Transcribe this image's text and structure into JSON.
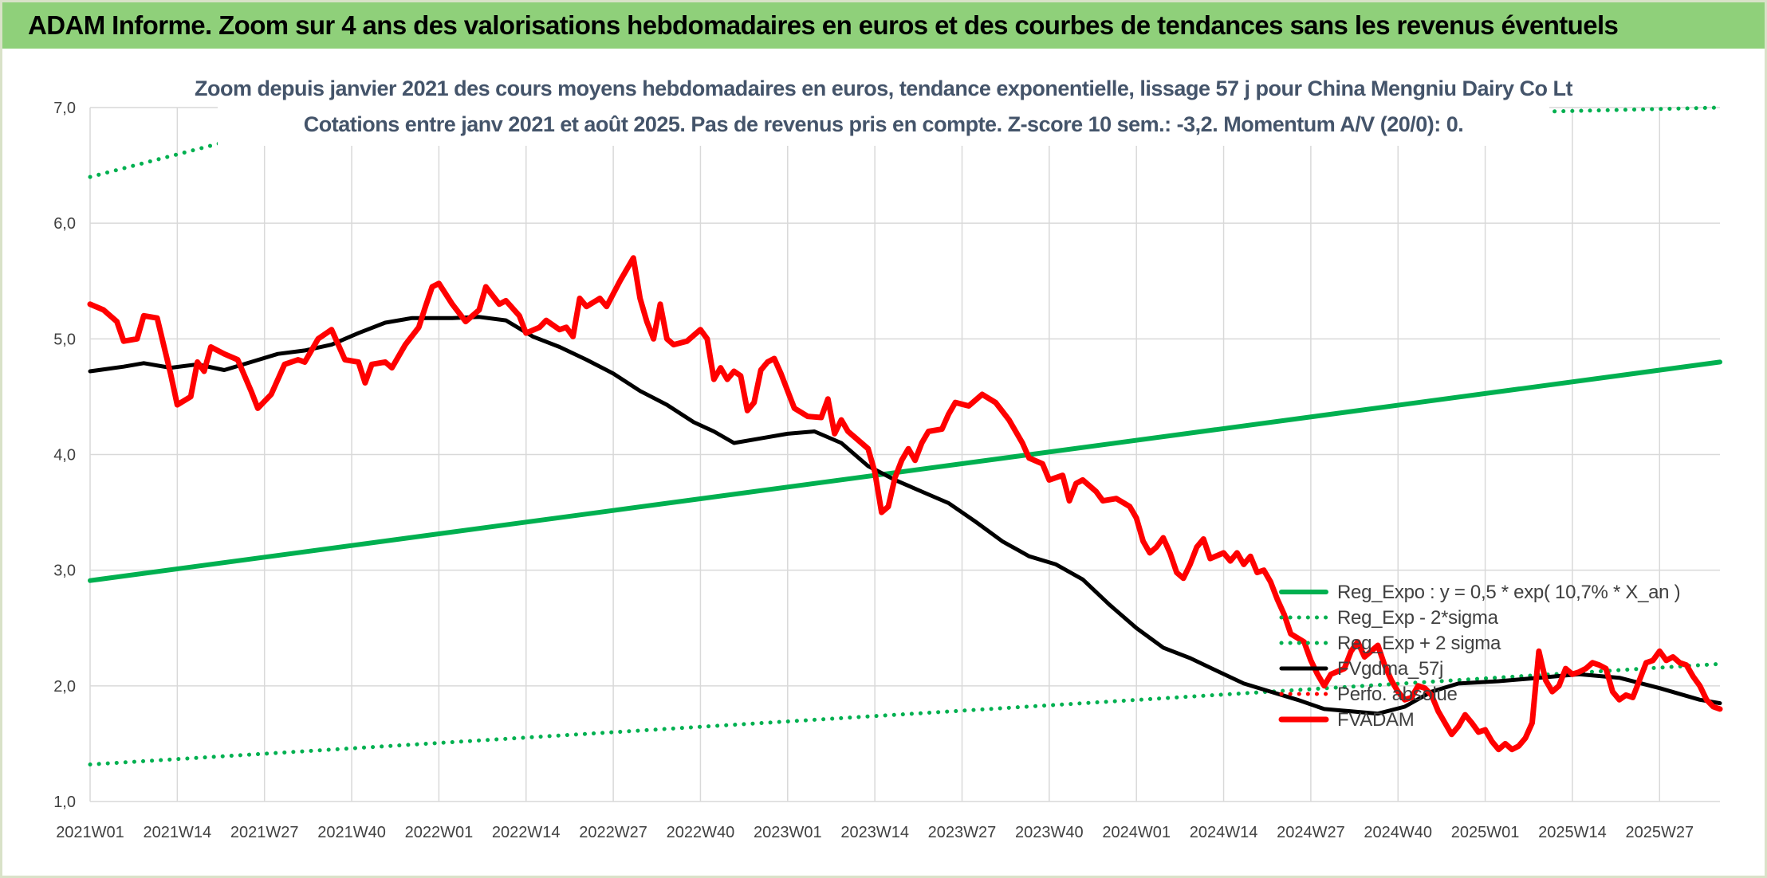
{
  "banner": {
    "title": "ADAM Informe. Zoom sur 4 ans des valorisations hebdomadaires en euros et des courbes de tendances sans les revenus éventuels"
  },
  "colors": {
    "banner_bg": "#8fd07a",
    "reg_green": "#00b050",
    "fvgdma_black": "#000000",
    "fvadam_red": "#ff0000",
    "grid": "#d9d9d9",
    "subtitle_text": "#44546a"
  },
  "chart_data": {
    "type": "line",
    "title": "Zoom depuis janvier 2021 des cours moyens hebdomadaires en euros, tendance exponentielle, lissage 57 j pour China Mengniu Dairy Co Lt",
    "subtitle": "Cotations entre janv 2021 et août 2025. Pas de revenus pris en compte. Z-score 10 sem.: -3,2. Momentum A/V (20/0): 0.",
    "xlabel": "",
    "ylabel": "",
    "ylim": [
      1.0,
      7.0
    ],
    "grid": true,
    "legend_position": "bottom-right",
    "y_ticks": [
      "1,0",
      "2,0",
      "3,0",
      "4,0",
      "5,0",
      "6,0",
      "7,0"
    ],
    "y_tick_values": [
      1,
      2,
      3,
      4,
      5,
      6,
      7
    ],
    "x_ticks": [
      "2021W01",
      "2021W14",
      "2021W27",
      "2021W40",
      "2022W01",
      "2022W14",
      "2022W27",
      "2022W40",
      "2023W01",
      "2023W14",
      "2023W27",
      "2023W40",
      "2024W01",
      "2024W14",
      "2024W27",
      "2024W40",
      "2025W01",
      "2025W14",
      "2025W27"
    ],
    "x_tick_index": [
      0,
      13,
      26,
      39,
      52,
      65,
      78,
      91,
      104,
      117,
      130,
      143,
      156,
      169,
      182,
      195,
      208,
      221,
      234
    ],
    "n_weeks": 244,
    "series": [
      {
        "name": "Reg_Expo : y = 0,5 * exp( 10,7% *  X_an )",
        "style": "solid-thick",
        "color": "#00b050",
        "points": [
          [
            0,
            2.91
          ],
          [
            243,
            4.8
          ]
        ]
      },
      {
        "name": "Reg_Exp - 2*sigma",
        "style": "dotted",
        "color": "#00b050",
        "points": [
          [
            0,
            1.32
          ],
          [
            243,
            2.19
          ]
        ]
      },
      {
        "name": "Reg_Exp + 2 sigma",
        "style": "dotted",
        "color": "#00b050",
        "points": [
          [
            0,
            6.4
          ],
          [
            20,
            6.7
          ],
          [
            243,
            7.0
          ]
        ]
      },
      {
        "name": "FVgdma_57j",
        "style": "solid",
        "color": "#000000",
        "points": [
          [
            0,
            4.72
          ],
          [
            5,
            4.76
          ],
          [
            8,
            4.79
          ],
          [
            12,
            4.75
          ],
          [
            16,
            4.78
          ],
          [
            20,
            4.73
          ],
          [
            24,
            4.8
          ],
          [
            28,
            4.87
          ],
          [
            32,
            4.9
          ],
          [
            36,
            4.95
          ],
          [
            40,
            5.05
          ],
          [
            44,
            5.14
          ],
          [
            48,
            5.18
          ],
          [
            54,
            5.18
          ],
          [
            58,
            5.19
          ],
          [
            62,
            5.16
          ],
          [
            66,
            5.02
          ],
          [
            70,
            4.93
          ],
          [
            74,
            4.82
          ],
          [
            78,
            4.7
          ],
          [
            82,
            4.55
          ],
          [
            86,
            4.43
          ],
          [
            90,
            4.28
          ],
          [
            93,
            4.2
          ],
          [
            96,
            4.1
          ],
          [
            100,
            4.14
          ],
          [
            104,
            4.18
          ],
          [
            108,
            4.2
          ],
          [
            112,
            4.1
          ],
          [
            116,
            3.9
          ],
          [
            120,
            3.78
          ],
          [
            124,
            3.68
          ],
          [
            128,
            3.58
          ],
          [
            132,
            3.42
          ],
          [
            136,
            3.25
          ],
          [
            140,
            3.12
          ],
          [
            144,
            3.05
          ],
          [
            148,
            2.92
          ],
          [
            152,
            2.7
          ],
          [
            156,
            2.5
          ],
          [
            160,
            2.33
          ],
          [
            164,
            2.24
          ],
          [
            168,
            2.13
          ],
          [
            172,
            2.02
          ],
          [
            176,
            1.95
          ],
          [
            180,
            1.88
          ],
          [
            184,
            1.8
          ],
          [
            188,
            1.78
          ],
          [
            192,
            1.76
          ],
          [
            196,
            1.82
          ],
          [
            200,
            1.95
          ],
          [
            204,
            2.02
          ],
          [
            210,
            2.04
          ],
          [
            216,
            2.07
          ],
          [
            222,
            2.1
          ],
          [
            228,
            2.07
          ],
          [
            234,
            1.98
          ],
          [
            240,
            1.88
          ],
          [
            243,
            1.85
          ]
        ]
      },
      {
        "name": "Perfo. absolue",
        "style": "dotted",
        "color": "#ff0000",
        "points": []
      },
      {
        "name": "FVADAM",
        "style": "solid-thick",
        "color": "#ff0000",
        "points": [
          [
            0,
            5.3
          ],
          [
            2,
            5.25
          ],
          [
            4,
            5.15
          ],
          [
            5,
            4.98
          ],
          [
            7,
            5.0
          ],
          [
            8,
            5.2
          ],
          [
            10,
            5.18
          ],
          [
            12,
            4.7
          ],
          [
            13,
            4.43
          ],
          [
            15,
            4.5
          ],
          [
            16,
            4.8
          ],
          [
            17,
            4.72
          ],
          [
            18,
            4.93
          ],
          [
            20,
            4.87
          ],
          [
            22,
            4.82
          ],
          [
            24,
            4.55
          ],
          [
            25,
            4.4
          ],
          [
            27,
            4.52
          ],
          [
            29,
            4.78
          ],
          [
            31,
            4.82
          ],
          [
            32,
            4.8
          ],
          [
            34,
            5.0
          ],
          [
            36,
            5.08
          ],
          [
            37,
            4.95
          ],
          [
            38,
            4.82
          ],
          [
            40,
            4.8
          ],
          [
            41,
            4.62
          ],
          [
            42,
            4.78
          ],
          [
            44,
            4.8
          ],
          [
            45,
            4.75
          ],
          [
            47,
            4.95
          ],
          [
            49,
            5.1
          ],
          [
            50,
            5.28
          ],
          [
            51,
            5.45
          ],
          [
            52,
            5.48
          ],
          [
            54,
            5.3
          ],
          [
            56,
            5.15
          ],
          [
            58,
            5.25
          ],
          [
            59,
            5.45
          ],
          [
            61,
            5.3
          ],
          [
            62,
            5.33
          ],
          [
            64,
            5.2
          ],
          [
            65,
            5.05
          ],
          [
            67,
            5.1
          ],
          [
            68,
            5.16
          ],
          [
            70,
            5.08
          ],
          [
            71,
            5.1
          ],
          [
            72,
            5.02
          ],
          [
            73,
            5.35
          ],
          [
            74,
            5.28
          ],
          [
            76,
            5.35
          ],
          [
            77,
            5.28
          ],
          [
            79,
            5.5
          ],
          [
            80,
            5.6
          ],
          [
            81,
            5.7
          ],
          [
            82,
            5.35
          ],
          [
            83,
            5.15
          ],
          [
            84,
            5.0
          ],
          [
            85,
            5.3
          ],
          [
            86,
            5.0
          ],
          [
            87,
            4.95
          ],
          [
            89,
            4.98
          ],
          [
            91,
            5.08
          ],
          [
            92,
            5.0
          ],
          [
            93,
            4.65
          ],
          [
            94,
            4.75
          ],
          [
            95,
            4.65
          ],
          [
            96,
            4.72
          ],
          [
            97,
            4.68
          ],
          [
            98,
            4.38
          ],
          [
            99,
            4.45
          ],
          [
            100,
            4.73
          ],
          [
            101,
            4.8
          ],
          [
            102,
            4.83
          ],
          [
            103,
            4.7
          ],
          [
            104,
            4.55
          ],
          [
            105,
            4.4
          ],
          [
            107,
            4.33
          ],
          [
            109,
            4.32
          ],
          [
            110,
            4.48
          ],
          [
            111,
            4.18
          ],
          [
            112,
            4.3
          ],
          [
            113,
            4.2
          ],
          [
            114,
            4.15
          ],
          [
            116,
            4.05
          ],
          [
            117,
            3.85
          ],
          [
            118,
            3.5
          ],
          [
            119,
            3.55
          ],
          [
            120,
            3.8
          ],
          [
            121,
            3.95
          ],
          [
            122,
            4.05
          ],
          [
            123,
            3.95
          ],
          [
            124,
            4.1
          ],
          [
            125,
            4.2
          ],
          [
            127,
            4.22
          ],
          [
            128,
            4.35
          ],
          [
            129,
            4.45
          ],
          [
            131,
            4.42
          ],
          [
            133,
            4.52
          ],
          [
            135,
            4.45
          ],
          [
            137,
            4.3
          ],
          [
            139,
            4.1
          ],
          [
            140,
            3.97
          ],
          [
            142,
            3.92
          ],
          [
            143,
            3.78
          ],
          [
            145,
            3.82
          ],
          [
            146,
            3.6
          ],
          [
            147,
            3.75
          ],
          [
            148,
            3.78
          ],
          [
            150,
            3.68
          ],
          [
            151,
            3.6
          ],
          [
            153,
            3.62
          ],
          [
            155,
            3.55
          ],
          [
            156,
            3.45
          ],
          [
            157,
            3.25
          ],
          [
            158,
            3.15
          ],
          [
            159,
            3.2
          ],
          [
            160,
            3.28
          ],
          [
            161,
            3.15
          ],
          [
            162,
            2.98
          ],
          [
            163,
            2.93
          ],
          [
            164,
            3.05
          ],
          [
            165,
            3.2
          ],
          [
            166,
            3.27
          ],
          [
            167,
            3.1
          ],
          [
            169,
            3.15
          ],
          [
            170,
            3.08
          ],
          [
            171,
            3.15
          ],
          [
            172,
            3.05
          ],
          [
            173,
            3.12
          ],
          [
            174,
            2.98
          ],
          [
            175,
            3.0
          ],
          [
            176,
            2.9
          ],
          [
            177,
            2.75
          ],
          [
            178,
            2.62
          ],
          [
            179,
            2.45
          ],
          [
            181,
            2.38
          ],
          [
            182,
            2.22
          ],
          [
            183,
            2.1
          ],
          [
            184,
            2.0
          ],
          [
            185,
            2.1
          ],
          [
            187,
            2.15
          ],
          [
            188,
            2.3
          ],
          [
            189,
            2.38
          ],
          [
            190,
            2.25
          ],
          [
            191,
            2.3
          ],
          [
            192,
            2.35
          ],
          [
            193,
            2.18
          ],
          [
            194,
            2.05
          ],
          [
            195,
            1.95
          ],
          [
            196,
            1.88
          ],
          [
            197,
            1.9
          ],
          [
            198,
            2.0
          ],
          [
            199,
            1.98
          ],
          [
            200,
            1.92
          ],
          [
            201,
            1.78
          ],
          [
            202,
            1.68
          ],
          [
            203,
            1.58
          ],
          [
            204,
            1.65
          ],
          [
            205,
            1.75
          ],
          [
            206,
            1.68
          ],
          [
            207,
            1.6
          ],
          [
            208,
            1.62
          ],
          [
            209,
            1.52
          ],
          [
            210,
            1.45
          ],
          [
            211,
            1.5
          ],
          [
            212,
            1.45
          ],
          [
            213,
            1.48
          ],
          [
            214,
            1.55
          ],
          [
            215,
            1.68
          ],
          [
            216,
            2.3
          ],
          [
            217,
            2.05
          ],
          [
            218,
            1.95
          ],
          [
            219,
            2.0
          ],
          [
            220,
            2.15
          ],
          [
            221,
            2.1
          ],
          [
            222,
            2.12
          ],
          [
            223,
            2.15
          ],
          [
            224,
            2.2
          ],
          [
            225,
            2.18
          ],
          [
            226,
            2.15
          ],
          [
            227,
            1.95
          ],
          [
            228,
            1.88
          ],
          [
            229,
            1.92
          ],
          [
            230,
            1.9
          ],
          [
            231,
            2.05
          ],
          [
            232,
            2.2
          ],
          [
            233,
            2.22
          ],
          [
            234,
            2.3
          ],
          [
            235,
            2.22
          ],
          [
            236,
            2.25
          ],
          [
            237,
            2.2
          ],
          [
            238,
            2.18
          ],
          [
            239,
            2.08
          ],
          [
            240,
            2.0
          ],
          [
            241,
            1.88
          ],
          [
            242,
            1.82
          ],
          [
            243,
            1.8
          ]
        ]
      }
    ]
  }
}
